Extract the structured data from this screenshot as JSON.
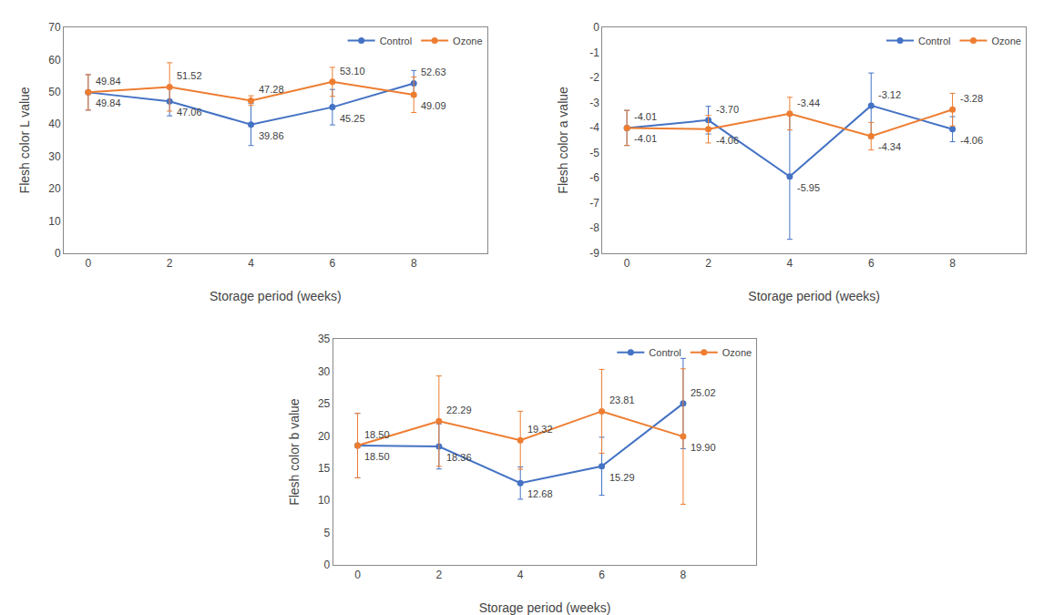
{
  "chart_data": [
    {
      "type": "line",
      "x": [
        0,
        2,
        4,
        6,
        8
      ],
      "xlabel": "Storage period (weeks)",
      "ylabel": "Flesh color L value",
      "xlim": [
        -0.6,
        9.8
      ],
      "xticks": [
        0,
        2,
        4,
        6,
        8
      ],
      "ylim": [
        0,
        70
      ],
      "yticks": [
        0,
        10,
        20,
        30,
        40,
        50,
        60,
        70
      ],
      "grid": false,
      "legend": "upper right",
      "data_labels": true,
      "marker": "circle",
      "line_style": "solid",
      "series": [
        {
          "name": "Control",
          "color": "#4472C4",
          "values": [
            49.84,
            47.06,
            39.86,
            45.25,
            52.63
          ],
          "value_labels": [
            "49.84",
            "47.06",
            "39.86",
            "45.25",
            "52.63"
          ],
          "errors": [
            5.5,
            4.5,
            6.5,
            5.5,
            4.0
          ]
        },
        {
          "name": "Ozone",
          "color": "#ED7D31",
          "values": [
            49.84,
            51.52,
            47.28,
            53.1,
            49.09
          ],
          "value_labels": [
            "49.84",
            "51.52",
            "47.28",
            "53.10",
            "49.09"
          ],
          "errors": [
            5.5,
            7.5,
            1.5,
            4.5,
            5.5
          ]
        }
      ]
    },
    {
      "type": "line",
      "x": [
        0,
        2,
        4,
        6,
        8
      ],
      "xlabel": "Storage period (weeks)",
      "ylabel": "Flesh color a value",
      "xlim": [
        -0.6,
        9.8
      ],
      "xticks": [
        0,
        2,
        4,
        6,
        8
      ],
      "ylim": [
        -9,
        0
      ],
      "yticks": [
        0,
        -1,
        -2,
        -3,
        -4,
        -5,
        -6,
        -7,
        -8,
        -9
      ],
      "grid": false,
      "legend": "upper right",
      "data_labels": true,
      "marker": "circle",
      "line_style": "solid",
      "series": [
        {
          "name": "Control",
          "color": "#4472C4",
          "values": [
            -4.01,
            -3.7,
            -5.95,
            -3.12,
            -4.06
          ],
          "value_labels": [
            "-4.01",
            "-3.70",
            "-5.95",
            "-3.12",
            "-4.06"
          ],
          "errors": [
            0.7,
            0.55,
            2.5,
            1.3,
            0.5
          ]
        },
        {
          "name": "Ozone",
          "color": "#ED7D31",
          "values": [
            -4.01,
            -4.06,
            -3.44,
            -4.34,
            -3.28
          ],
          "value_labels": [
            "-4.01",
            "-4.06",
            "-3.44",
            "-4.34",
            "-3.28"
          ],
          "errors": [
            0.7,
            0.55,
            0.65,
            0.55,
            0.65
          ]
        }
      ]
    },
    {
      "type": "line",
      "x": [
        0,
        2,
        4,
        6,
        8
      ],
      "xlabel": "Storage period (weeks)",
      "ylabel": "Flesh color b value",
      "xlim": [
        -0.6,
        9.8
      ],
      "xticks": [
        0,
        2,
        4,
        6,
        8
      ],
      "ylim": [
        0,
        35
      ],
      "yticks": [
        0,
        5,
        10,
        15,
        20,
        25,
        30,
        35
      ],
      "grid": false,
      "legend": "upper right",
      "data_labels": true,
      "marker": "circle",
      "line_style": "solid",
      "series": [
        {
          "name": "Control",
          "color": "#4472C4",
          "values": [
            18.5,
            18.36,
            12.68,
            15.29,
            25.02
          ],
          "value_labels": [
            "18.50",
            "18.36",
            "12.68",
            "15.29",
            "25.02"
          ],
          "errors": [
            5.0,
            3.5,
            2.5,
            4.5,
            7.0
          ]
        },
        {
          "name": "Ozone",
          "color": "#ED7D31",
          "values": [
            18.5,
            22.29,
            19.32,
            23.81,
            19.9
          ],
          "value_labels": [
            "18.50",
            "22.29",
            "19.32",
            "23.81",
            "19.90"
          ],
          "errors": [
            5.0,
            7.0,
            4.5,
            6.5,
            10.5
          ]
        }
      ]
    }
  ]
}
